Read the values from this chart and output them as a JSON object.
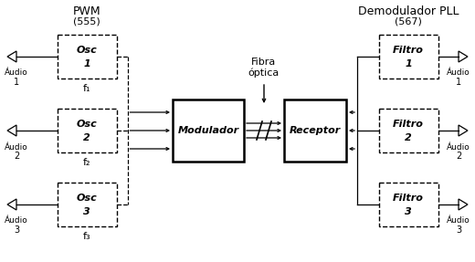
{
  "bg_color": "#ffffff",
  "pwm_label": "PWM",
  "pwm_sub": "(555)",
  "demod_label": "Demodulador PLL",
  "demod_sub": "(567)",
  "fibra_label": "Fibra\nóptica",
  "osc_labels": [
    "Osc\n1",
    "Osc\n2",
    "Osc\n3"
  ],
  "osc_freqs": [
    "f₁",
    "f₂",
    "f₃"
  ],
  "filtro_labels": [
    "Filtro\n1",
    "Filtro\n2",
    "Filtro\n3"
  ],
  "mod_label": "Modulador",
  "rec_label": "Receptor"
}
